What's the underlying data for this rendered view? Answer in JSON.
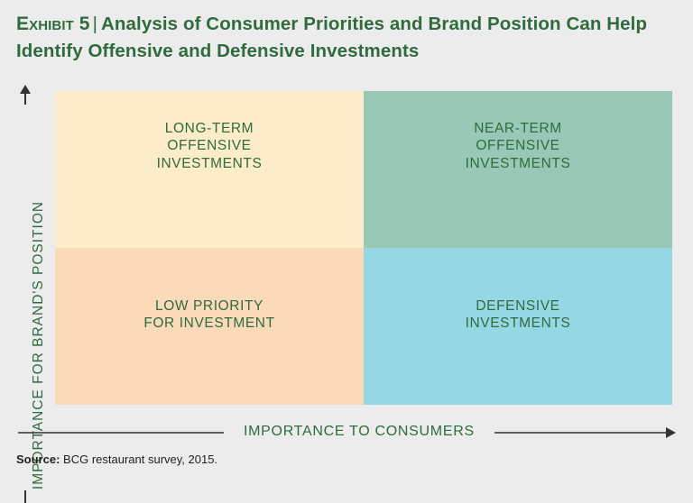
{
  "title": {
    "exhibit": "Exhibit 5",
    "separator": "|",
    "text": "Analysis of Consumer Priorities and Brand Position Can Help Identify Offensive and Defensive Investments"
  },
  "quadrants": {
    "top_left": "LONG-TERM\nOFFENSIVE\nINVESTMENTS",
    "top_right": "NEAR-TERM\nOFFENSIVE\nINVESTMENTS",
    "bottom_left": "LOW PRIORITY\nFOR INVESTMENT",
    "bottom_right": "DEFENSIVE\nINVESTMENTS"
  },
  "axes": {
    "y_label": "IMPORTANCE FOR BRAND'S POSITION",
    "x_label": "IMPORTANCE TO CONSUMERS"
  },
  "source": {
    "label": "Source:",
    "text": "BCG restaurant survey, 2015."
  },
  "colors": {
    "top_left": "#fcecc9",
    "top_right": "#9ac8b7",
    "bottom_left": "#fbdab9",
    "bottom_right": "#96d7e4",
    "text_green": "#2f6b3e"
  }
}
